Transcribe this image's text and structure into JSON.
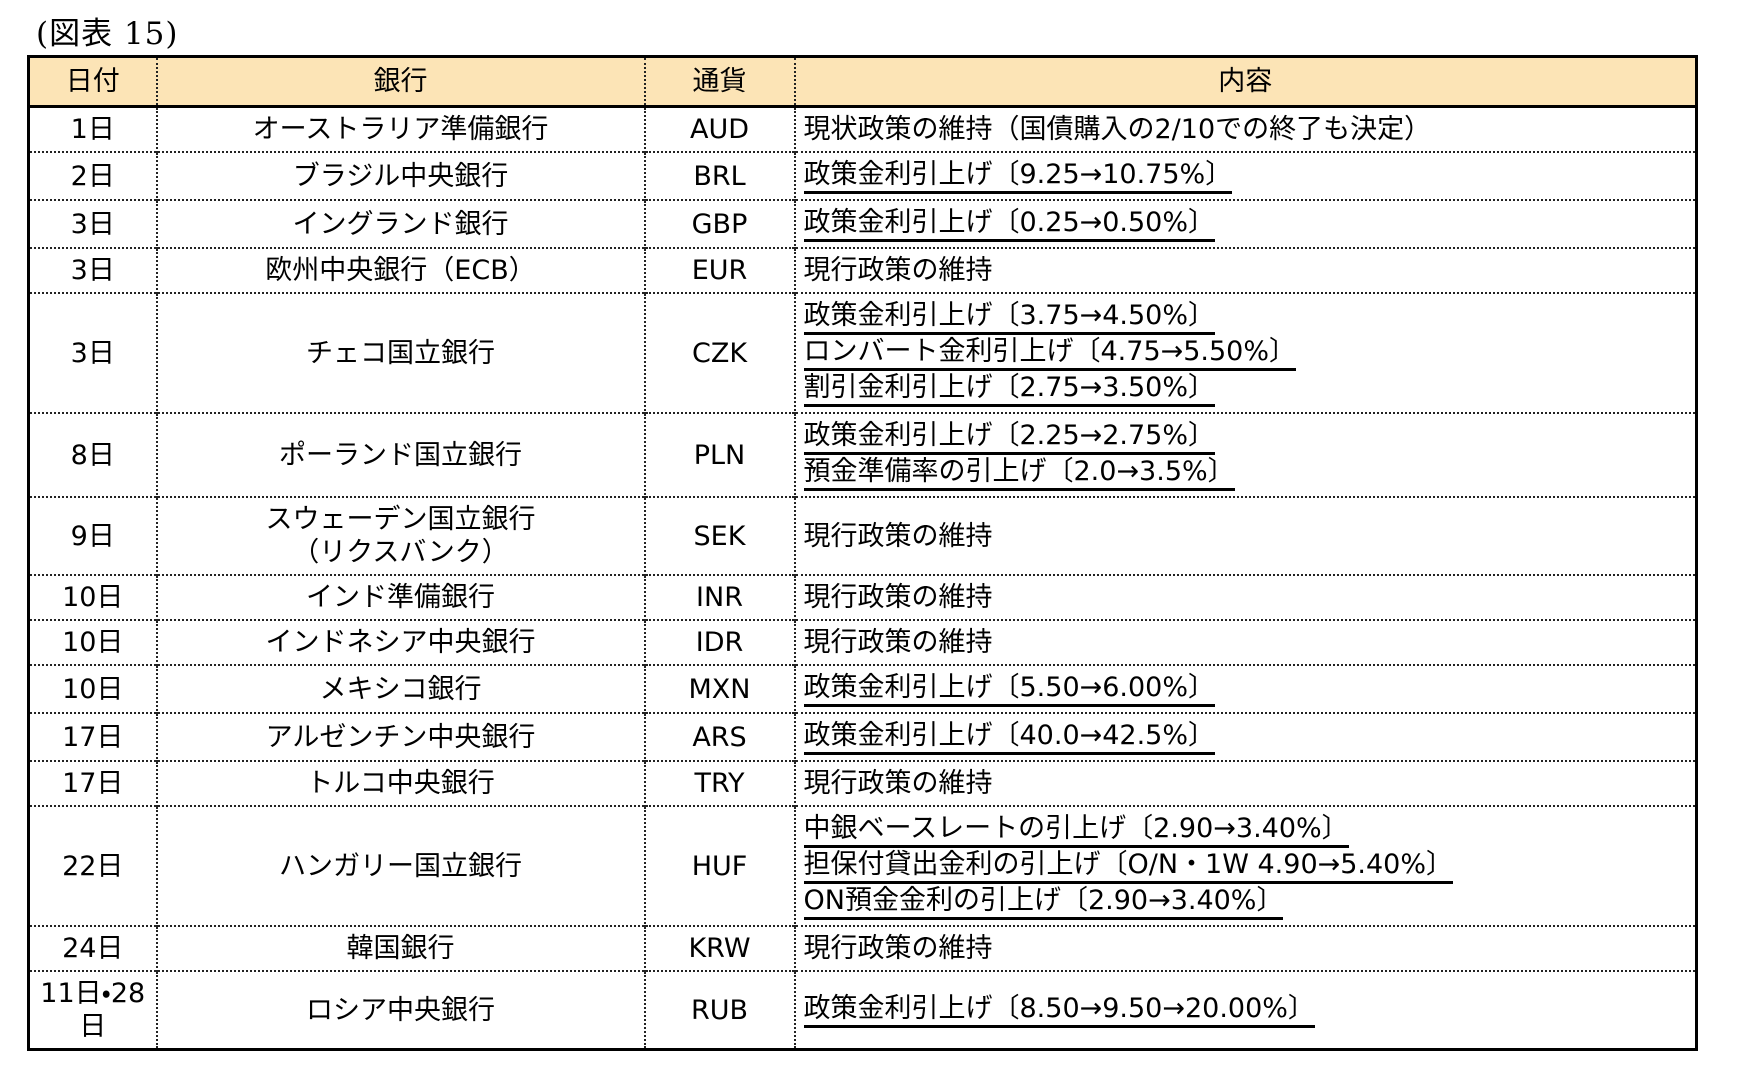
{
  "title": "(図表 15)",
  "colors": {
    "header_bg": "#FCE4B6",
    "border": "#000000",
    "text": "#000000"
  },
  "table": {
    "headers": [
      "日付",
      "銀行",
      "通貨",
      "内容"
    ],
    "rows": [
      {
        "date": "1日",
        "bank_lines": [
          "オーストラリア準備銀行"
        ],
        "currency": "AUD",
        "content": [
          {
            "text": "現状政策の維持（国債購入の2/10での終了も決定）",
            "underline": false
          }
        ]
      },
      {
        "date": "2日",
        "bank_lines": [
          "ブラジル中央銀行"
        ],
        "currency": "BRL",
        "content": [
          {
            "text": "政策金利引上げ〔9.25→10.75%〕",
            "underline": true
          }
        ]
      },
      {
        "date": "3日",
        "bank_lines": [
          "イングランド銀行"
        ],
        "currency": "GBP",
        "content": [
          {
            "text": "政策金利引上げ〔0.25→0.50%〕",
            "underline": true
          }
        ]
      },
      {
        "date": "3日",
        "bank_lines": [
          "欧州中央銀行（ECB）"
        ],
        "currency": "EUR",
        "content": [
          {
            "text": "現行政策の維持",
            "underline": false
          }
        ]
      },
      {
        "date": "3日",
        "bank_lines": [
          "チェコ国立銀行"
        ],
        "currency": "CZK",
        "content": [
          {
            "text": "政策金利引上げ〔3.75→4.50%〕",
            "underline": true
          },
          {
            "text": "ロンバート金利引上げ〔4.75→5.50%〕",
            "underline": true
          },
          {
            "text": "割引金利引上げ〔2.75→3.50%〕",
            "underline": true
          }
        ]
      },
      {
        "date": "8日",
        "bank_lines": [
          "ポーランド国立銀行"
        ],
        "currency": "PLN",
        "content": [
          {
            "text": "政策金利引上げ〔2.25→2.75%〕",
            "underline": true
          },
          {
            "text": "預金準備率の引上げ〔2.0→3.5%〕",
            "underline": true
          }
        ]
      },
      {
        "date": "9日",
        "bank_lines": [
          "スウェーデン国立銀行",
          "（リクスバンク）"
        ],
        "currency": "SEK",
        "content": [
          {
            "text": "現行政策の維持",
            "underline": false
          }
        ]
      },
      {
        "date": "10日",
        "bank_lines": [
          "インド準備銀行"
        ],
        "currency": "INR",
        "content": [
          {
            "text": "現行政策の維持",
            "underline": false
          }
        ]
      },
      {
        "date": "10日",
        "bank_lines": [
          "インドネシア中央銀行"
        ],
        "currency": "IDR",
        "content": [
          {
            "text": "現行政策の維持",
            "underline": false
          }
        ]
      },
      {
        "date": "10日",
        "bank_lines": [
          "メキシコ銀行"
        ],
        "currency": "MXN",
        "content": [
          {
            "text": "政策金利引上げ〔5.50→6.00%〕",
            "underline": true
          }
        ]
      },
      {
        "date": "17日",
        "bank_lines": [
          "アルゼンチン中央銀行"
        ],
        "currency": "ARS",
        "content": [
          {
            "text": "政策金利引上げ〔40.0→42.5%〕",
            "underline": true
          }
        ]
      },
      {
        "date": "17日",
        "bank_lines": [
          "トルコ中央銀行"
        ],
        "currency": "TRY",
        "content": [
          {
            "text": "現行政策の維持",
            "underline": false
          }
        ]
      },
      {
        "date": "22日",
        "bank_lines": [
          "ハンガリー国立銀行"
        ],
        "currency": "HUF",
        "content": [
          {
            "text": "中銀ベースレートの引上げ〔2.90→3.40%〕",
            "underline": true
          },
          {
            "text": "担保付貸出金利の引上げ〔O/N・1W 4.90→5.40%〕",
            "underline": true
          },
          {
            "text": "ON預金金利の引上げ〔2.90→3.40%〕",
            "underline": true
          }
        ]
      },
      {
        "date": "24日",
        "bank_lines": [
          "韓国銀行"
        ],
        "currency": "KRW",
        "content": [
          {
            "text": "現行政策の維持",
            "underline": false
          }
        ]
      },
      {
        "date": "11日・28日",
        "bank_lines": [
          "ロシア中央銀行"
        ],
        "currency": "RUB",
        "content": [
          {
            "text": "政策金利引上げ〔8.50→9.50→20.00%〕",
            "underline": true
          }
        ]
      }
    ]
  }
}
